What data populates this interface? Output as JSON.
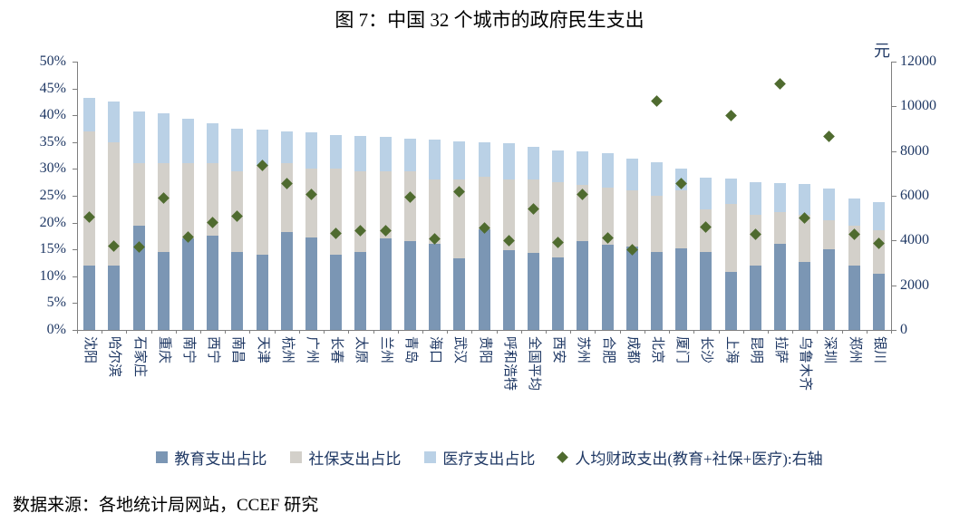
{
  "chart_data": {
    "type": "bar",
    "subtype": "stacked-bar-with-scatter-combo",
    "title": "图 7：中国 32 个城市的政府民生支出",
    "source": "数据来源：各地统计局网站，CCEF 研究",
    "grid": "off",
    "legend_position": "bottom",
    "left_axis": {
      "min": 0,
      "max": 50,
      "step": 5,
      "format": "percent",
      "ticks": [
        "50%",
        "45%",
        "40%",
        "35%",
        "30%",
        "25%",
        "20%",
        "15%",
        "10%",
        "5%",
        "0%"
      ]
    },
    "right_axis": {
      "min": 0,
      "max": 12000,
      "step": 2000,
      "unit": "元",
      "ticks": [
        "12000",
        "10000",
        "8000",
        "6000",
        "4000",
        "2000",
        "0"
      ]
    },
    "categories": [
      "沈阳",
      "哈尔滨",
      "石家庄",
      "重庆",
      "南宁",
      "西宁",
      "南昌",
      "天津",
      "杭州",
      "广州",
      "长春",
      "太原",
      "兰州",
      "青岛",
      "海口",
      "武汉",
      "贵阳",
      "呼和浩特",
      "全国平均",
      "西安",
      "苏州",
      "合肥",
      "成都",
      "北京",
      "厦门",
      "长沙",
      "上海",
      "昆明",
      "拉萨",
      "乌鲁木齐",
      "深圳",
      "郑州",
      "银川"
    ],
    "series": [
      {
        "name": "教育支出占比",
        "type": "bar-stacked",
        "axis": "left",
        "color": "#7b96b4",
        "values": [
          12.0,
          12.0,
          19.5,
          14.5,
          17.0,
          17.5,
          14.5,
          14.0,
          18.2,
          17.2,
          14.0,
          14.6,
          17.0,
          16.6,
          16.0,
          13.3,
          18.8,
          14.8,
          14.3,
          13.5,
          16.5,
          15.8,
          15.5,
          14.5,
          15.2,
          14.5,
          10.8,
          12.0,
          16.0,
          12.7,
          15.0,
          12.0,
          10.5
        ]
      },
      {
        "name": "社保支出占比",
        "type": "bar-stacked",
        "axis": "left",
        "color": "#d3d0ca",
        "values": [
          25.0,
          23.0,
          11.5,
          16.5,
          14.0,
          13.5,
          15.0,
          16.5,
          12.8,
          12.8,
          16.0,
          14.9,
          12.5,
          12.9,
          12.0,
          14.7,
          9.7,
          13.2,
          13.7,
          14.0,
          10.5,
          10.7,
          10.5,
          10.5,
          10.8,
          8.0,
          12.7,
          9.5,
          6.0,
          8.8,
          5.5,
          7.5,
          8.0
        ]
      },
      {
        "name": "医疗支出占比",
        "type": "bar-stacked",
        "axis": "left",
        "color": "#bad1e6",
        "values": [
          6.3,
          7.5,
          9.7,
          9.3,
          8.3,
          7.5,
          8.0,
          6.8,
          6.0,
          6.8,
          6.4,
          6.7,
          6.4,
          6.2,
          7.5,
          7.2,
          6.5,
          6.8,
          6.2,
          6.0,
          6.3,
          6.5,
          6.0,
          6.2,
          4.0,
          5.8,
          4.7,
          6.0,
          5.3,
          5.7,
          5.8,
          5.0,
          5.3
        ]
      },
      {
        "name": "人均财政支出(教育+社保+医疗):右轴",
        "type": "scatter-diamond",
        "axis": "right",
        "color": "#4f6b2f",
        "values": [
          5050,
          3750,
          3700,
          5900,
          4150,
          4800,
          5100,
          7350,
          6550,
          6050,
          4320,
          4430,
          4430,
          5950,
          4080,
          6200,
          4550,
          4000,
          5400,
          3900,
          6050,
          4100,
          3600,
          10250,
          6530,
          4600,
          9600,
          4280,
          11000,
          5000,
          8650,
          4280,
          3870
        ]
      }
    ]
  }
}
